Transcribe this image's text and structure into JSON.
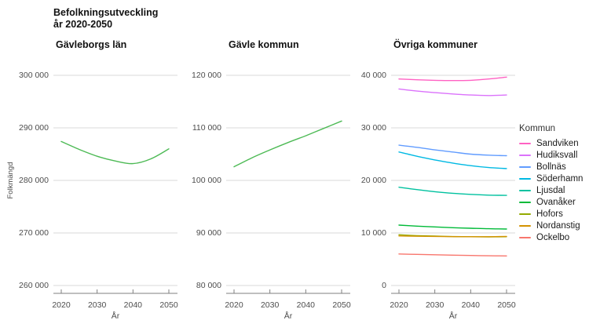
{
  "header": {
    "title_line1": "Befolkningsutveckling",
    "title_line2": "år 2020-2050"
  },
  "style_colors": {
    "gridline": "#d9d9d9",
    "axis": "#7f7f7f",
    "axis_text": "#4d4d4d",
    "title_text": "#111111"
  },
  "chart_data": [
    {
      "type": "line",
      "title": "Gävleborgs län",
      "xlabel": "År",
      "ylabel": "Folkmängd",
      "grid": true,
      "x": [
        2020,
        2025,
        2030,
        2035,
        2040,
        2045,
        2050
      ],
      "xticks": [
        2020,
        2030,
        2040,
        2050
      ],
      "xtick_labels": [
        "2020",
        "2030",
        "2040",
        "2050"
      ],
      "ylim": [
        260000,
        300000
      ],
      "yticks": [
        300000,
        290000,
        280000,
        270000,
        260000
      ],
      "ytick_labels": [
        "300 000",
        "290 000",
        "280 000",
        "270 000",
        "260 000"
      ],
      "series": [
        {
          "name": "Gävleborgs län",
          "color": "#4dba55",
          "values": [
            287400,
            285900,
            284600,
            283700,
            283200,
            284100,
            286000
          ]
        }
      ]
    },
    {
      "type": "line",
      "title": "Gävle kommun",
      "xlabel": "År",
      "grid": true,
      "x": [
        2020,
        2025,
        2030,
        2035,
        2040,
        2045,
        2050
      ],
      "xticks": [
        2020,
        2030,
        2040,
        2050
      ],
      "xtick_labels": [
        "2020",
        "2030",
        "2040",
        "2050"
      ],
      "ylim": [
        80000,
        120000
      ],
      "yticks": [
        120000,
        110000,
        100000,
        90000,
        80000
      ],
      "ytick_labels": [
        "120 000",
        "110 000",
        "100 000",
        "90 000",
        "80 000"
      ],
      "series": [
        {
          "name": "Gävle kommun",
          "color": "#4dba55",
          "values": [
            102600,
            104300,
            105800,
            107200,
            108500,
            109900,
            111300
          ]
        }
      ]
    },
    {
      "type": "line",
      "title": "Övriga kommuner",
      "xlabel": "År",
      "grid": true,
      "legend_title": "Kommun",
      "legend_position": "right",
      "x": [
        2020,
        2025,
        2030,
        2035,
        2040,
        2045,
        2050
      ],
      "xticks": [
        2020,
        2030,
        2040,
        2050
      ],
      "xtick_labels": [
        "2020",
        "2030",
        "2040",
        "2050"
      ],
      "ylim": [
        0,
        40000
      ],
      "yticks": [
        40000,
        30000,
        20000,
        10000,
        0
      ],
      "ytick_labels": [
        "40 000",
        "30 000",
        "20 000",
        "10 000",
        "0"
      ],
      "series": [
        {
          "name": "Sandviken",
          "color": "#FF61C3",
          "values": [
            39300,
            39150,
            39050,
            39000,
            39050,
            39300,
            39650
          ]
        },
        {
          "name": "Hudiksvall",
          "color": "#DB72FB",
          "values": [
            37400,
            37000,
            36700,
            36450,
            36250,
            36150,
            36250
          ]
        },
        {
          "name": "Bollnäs",
          "color": "#619CFF",
          "values": [
            26700,
            26300,
            25800,
            25400,
            25000,
            24800,
            24700
          ]
        },
        {
          "name": "Söderhamn",
          "color": "#00B9E3",
          "values": [
            25400,
            24600,
            23900,
            23300,
            22800,
            22450,
            22250
          ]
        },
        {
          "name": "Ljusdal",
          "color": "#00C19F",
          "values": [
            18700,
            18250,
            17850,
            17550,
            17350,
            17200,
            17150
          ]
        },
        {
          "name": "Ovanåker",
          "color": "#00BA38",
          "values": [
            11500,
            11300,
            11150,
            11000,
            10900,
            10800,
            10750
          ]
        },
        {
          "name": "Hofors",
          "color": "#93AA00",
          "values": [
            9650,
            9500,
            9400,
            9320,
            9280,
            9260,
            9280
          ]
        },
        {
          "name": "Nordanstig",
          "color": "#D39200",
          "values": [
            9430,
            9380,
            9340,
            9300,
            9280,
            9290,
            9340
          ]
        },
        {
          "name": "Ockelbo",
          "color": "#F8766D",
          "values": [
            6000,
            5920,
            5850,
            5780,
            5720,
            5660,
            5620
          ]
        }
      ]
    }
  ]
}
